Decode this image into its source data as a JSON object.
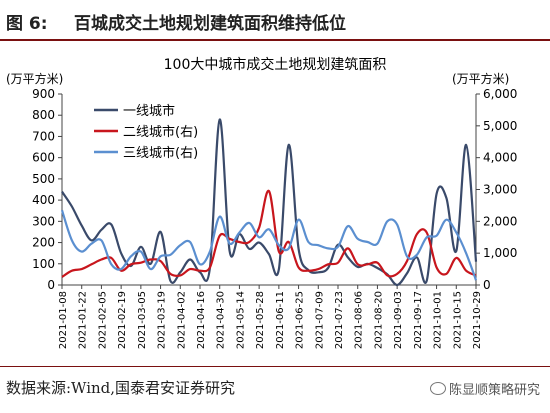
{
  "header": {
    "figure_label": "图 6:",
    "figure_title": "百城成交土地规划建筑面积维持低位"
  },
  "footer": {
    "source": "数据来源:Wind,国泰君安证券研究",
    "watermark": "陈显顺策略研究"
  },
  "colors": {
    "accent_rule": "#7a1010",
    "tier1": "#3a4a6a",
    "tier2": "#c8161d",
    "tier3": "#5b8fd0"
  },
  "chart_data": {
    "type": "line",
    "title": "100大中城市成交土地规划建筑面积",
    "y_left_unit": "(万平方米)",
    "y_right_unit": "(万平方米)",
    "y_left_lim": [
      0,
      900
    ],
    "y_left_ticks": [
      0,
      100,
      200,
      300,
      400,
      500,
      600,
      700,
      800,
      900
    ],
    "y_right_lim": [
      0,
      6000
    ],
    "y_right_ticks": [
      "0",
      "1,000",
      "2,000",
      "3,000",
      "4,000",
      "5,000",
      "6,000"
    ],
    "y_right_tick_values": [
      0,
      1000,
      2000,
      3000,
      4000,
      5000,
      6000
    ],
    "x_tick_labels": [
      "2021-01-08",
      "2021-01-22",
      "2021-02-05",
      "2021-02-19",
      "2021-03-05",
      "2021-03-19",
      "2021-04-02",
      "2021-04-16",
      "2021-04-30",
      "2021-05-14",
      "2021-05-28",
      "2021-06-11",
      "2021-06-25",
      "2021-07-09",
      "2021-07-23",
      "2021-08-06",
      "2021-08-20",
      "2021-09-03",
      "2021-09-17",
      "2021-10-01",
      "2021-10-15",
      "2021-10-29"
    ],
    "x_dates": [
      "2021-01-08",
      "2021-01-15",
      "2021-01-22",
      "2021-01-29",
      "2021-02-05",
      "2021-02-12",
      "2021-02-19",
      "2021-02-26",
      "2021-03-05",
      "2021-03-12",
      "2021-03-19",
      "2021-03-26",
      "2021-04-02",
      "2021-04-09",
      "2021-04-16",
      "2021-04-23",
      "2021-04-30",
      "2021-05-07",
      "2021-05-14",
      "2021-05-21",
      "2021-05-28",
      "2021-06-04",
      "2021-06-11",
      "2021-06-18",
      "2021-06-25",
      "2021-07-02",
      "2021-07-09",
      "2021-07-16",
      "2021-07-23",
      "2021-07-30",
      "2021-08-06",
      "2021-08-13",
      "2021-08-20",
      "2021-08-27",
      "2021-09-03",
      "2021-09-10",
      "2021-09-17",
      "2021-09-24",
      "2021-10-01",
      "2021-10-08",
      "2021-10-15",
      "2021-10-22",
      "2021-10-29"
    ],
    "legend_position": "top-left",
    "grid": false,
    "series": [
      {
        "name": "一线城市",
        "axis": "left",
        "color": "#3a4a6a",
        "values": [
          440,
          370,
          280,
          210,
          260,
          285,
          150,
          90,
          180,
          100,
          250,
          20,
          60,
          120,
          60,
          80,
          780,
          160,
          240,
          170,
          200,
          145,
          75,
          660,
          170,
          70,
          60,
          80,
          190,
          130,
          85,
          100,
          80,
          50,
          0,
          55,
          130,
          20,
          430,
          410,
          160,
          660,
          110
        ]
      },
      {
        "name": "二线城市(右)",
        "axis": "right",
        "color": "#c8161d",
        "values": [
          250,
          450,
          500,
          650,
          800,
          850,
          450,
          650,
          700,
          800,
          750,
          350,
          300,
          500,
          450,
          550,
          1550,
          1450,
          1350,
          1350,
          1800,
          2950,
          1050,
          1350,
          550,
          450,
          500,
          650,
          700,
          1150,
          650,
          650,
          700,
          300,
          350,
          750,
          1600,
          1650,
          550,
          350,
          850,
          450,
          300
        ]
      },
      {
        "name": "三线城市(右)",
        "axis": "right",
        "color": "#5b8fd0",
        "values": [
          2350,
          1400,
          1050,
          1300,
          1400,
          650,
          500,
          900,
          1050,
          500,
          900,
          950,
          1250,
          1350,
          650,
          1050,
          2150,
          1300,
          1650,
          1950,
          1500,
          1750,
          1250,
          1150,
          2050,
          1350,
          1250,
          1150,
          1200,
          1850,
          1450,
          1350,
          1300,
          2000,
          1900,
          900,
          950,
          1500,
          1550,
          2050,
          1650,
          1000,
          150
        ]
      }
    ]
  }
}
